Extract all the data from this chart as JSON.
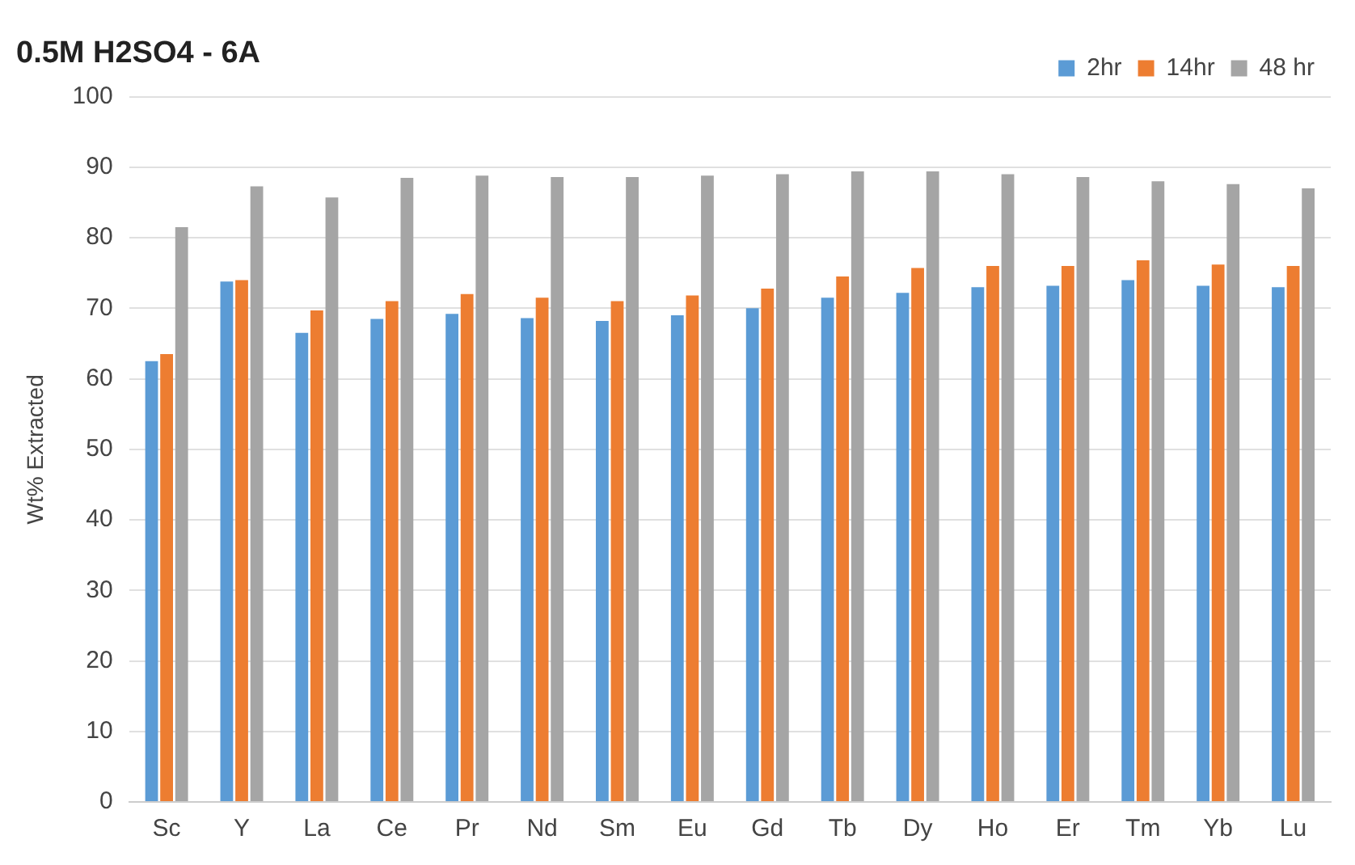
{
  "chart_data": {
    "type": "bar",
    "title": "0.5M H2SO4 - 6A",
    "ylabel": "Wt% Extracted",
    "categories": [
      "Sc",
      "Y",
      "La",
      "Ce",
      "Pr",
      "Nd",
      "Sm",
      "Eu",
      "Gd",
      "Tb",
      "Dy",
      "Ho",
      "Er",
      "Tm",
      "Yb",
      "Lu"
    ],
    "series": [
      {
        "name": "2hr",
        "color": "#5b9bd5",
        "values": [
          62.5,
          73.8,
          66.5,
          68.5,
          69.2,
          68.6,
          68.2,
          69,
          70,
          71.5,
          72.2,
          73,
          73.2,
          74,
          73.2,
          73
        ]
      },
      {
        "name": "14hr",
        "color": "#ed7d31",
        "values": [
          63.5,
          74,
          69.7,
          71,
          72,
          71.5,
          71,
          71.8,
          72.8,
          74.5,
          75.7,
          76,
          76,
          76.8,
          76.2,
          76
        ]
      },
      {
        "name": "48 hr",
        "color": "#a5a5a5",
        "values": [
          81.5,
          87.3,
          85.7,
          88.5,
          88.8,
          88.6,
          88.6,
          88.8,
          89,
          89.4,
          89.4,
          89,
          88.6,
          88,
          87.6,
          87
        ]
      }
    ],
    "ylim": [
      0,
      100
    ],
    "yticks": [
      0,
      10,
      20,
      30,
      40,
      50,
      60,
      70,
      80,
      90,
      100
    ],
    "grid": "y",
    "legend": "top right"
  }
}
